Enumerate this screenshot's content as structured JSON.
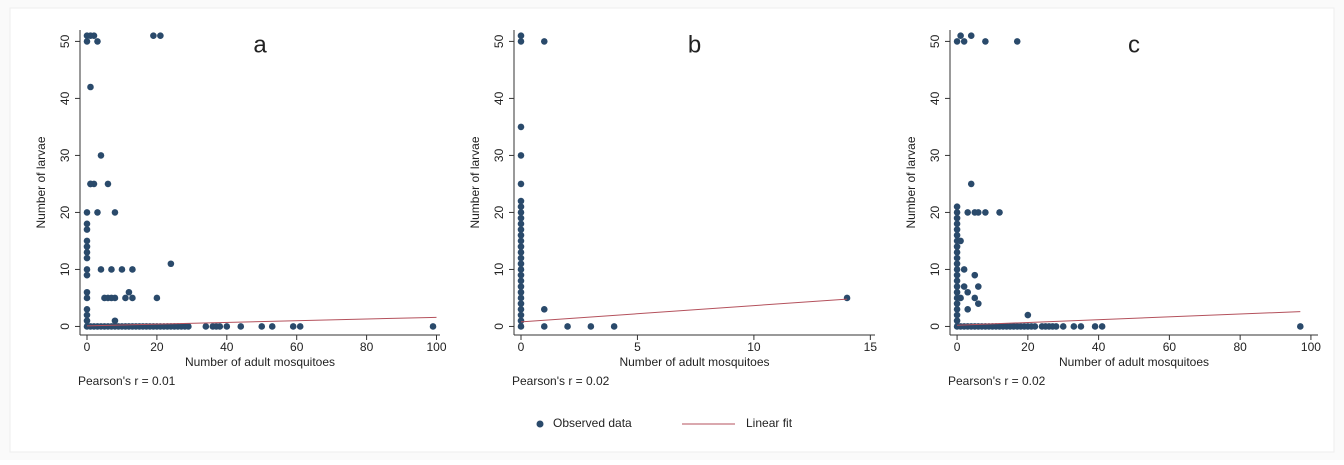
{
  "chart_data": [
    {
      "type": "scatter",
      "panel_label": "a",
      "x_label": "Number of adult mosquitoes",
      "y_label": "Number of larvae",
      "annotation": "Pearson's r =  0.01",
      "xlim": [
        -2,
        101
      ],
      "ylim": [
        -1.5,
        52
      ],
      "xticks": [
        0,
        20,
        40,
        60,
        80,
        100
      ],
      "yticks": [
        0,
        10,
        20,
        30,
        40,
        50
      ],
      "series": [
        {
          "name": "Observed data",
          "color": "#2a4a6b",
          "x": [
            0,
            0,
            0,
            0,
            0,
            0,
            0,
            0,
            0,
            0,
            0,
            0,
            0,
            0,
            0,
            0,
            1,
            0,
            1,
            4,
            6,
            8,
            2,
            1,
            3,
            4,
            7,
            10,
            13,
            8,
            11,
            13,
            12,
            20,
            24,
            19,
            21,
            2,
            1,
            3,
            8,
            5,
            6,
            7,
            1,
            2,
            3,
            4,
            5,
            6,
            7,
            8,
            9,
            10,
            11,
            12,
            13,
            14,
            15,
            16,
            17,
            18,
            19,
            20,
            21,
            22,
            23,
            24,
            25,
            26,
            27,
            28,
            29,
            34,
            36,
            37,
            38,
            40,
            44,
            50,
            53,
            59,
            61,
            99
          ],
          "y": [
            0,
            1,
            2,
            3,
            5,
            6,
            9,
            10,
            12,
            13,
            14,
            15,
            17,
            18,
            20,
            50,
            51,
            51,
            25,
            30,
            25,
            20,
            25,
            25,
            20,
            10,
            10,
            10,
            10,
            5,
            5,
            5,
            6,
            5,
            11,
            51,
            51,
            51,
            42,
            50,
            1,
            5,
            5,
            5,
            0,
            0,
            0,
            0,
            0,
            0,
            0,
            0,
            0,
            0,
            0,
            0,
            0,
            0,
            0,
            0,
            0,
            0,
            0,
            0,
            0,
            0,
            0,
            0,
            0,
            0,
            0,
            0,
            0,
            0,
            0,
            0,
            0,
            0,
            0,
            0,
            0,
            0,
            0,
            0
          ]
        },
        {
          "name": "Linear fit",
          "color": "#b4515c",
          "type": "line",
          "x": [
            0,
            100
          ],
          "y": [
            0.1,
            1.6
          ]
        }
      ]
    },
    {
      "type": "scatter",
      "panel_label": "b",
      "x_label": "Number of adult mosquitoes",
      "y_label": "Number of larvae",
      "annotation": "Pearson's r = 0.02",
      "xlim": [
        -0.3,
        15.2
      ],
      "ylim": [
        -1.5,
        52
      ],
      "xticks": [
        0,
        5,
        10,
        15
      ],
      "yticks": [
        0,
        10,
        20,
        30,
        40,
        50
      ],
      "series": [
        {
          "name": "Observed data",
          "color": "#2a4a6b",
          "x": [
            0,
            0,
            0,
            0,
            0,
            0,
            0,
            0,
            0,
            0,
            0,
            0,
            0,
            0,
            0,
            0,
            0,
            0,
            0,
            0,
            0,
            0,
            0,
            0,
            0,
            0,
            0,
            0,
            1,
            1,
            1,
            2,
            3,
            4,
            14
          ],
          "y": [
            0,
            1,
            2,
            3,
            4,
            5,
            6,
            7,
            8,
            9,
            10,
            11,
            12,
            13,
            14,
            15,
            16,
            17,
            18,
            19,
            20,
            21,
            22,
            25,
            30,
            35,
            50,
            51,
            50,
            3,
            0,
            0,
            0,
            0,
            5
          ]
        },
        {
          "name": "Linear fit",
          "color": "#b4515c",
          "type": "line",
          "x": [
            0,
            14
          ],
          "y": [
            0.8,
            4.8
          ]
        }
      ]
    },
    {
      "type": "scatter",
      "panel_label": "c",
      "x_label": "Number of adult mosquitoes",
      "y_label": "Number of larvae",
      "annotation": "Pearson's r = 0.02",
      "xlim": [
        -2,
        102
      ],
      "ylim": [
        -1.5,
        52
      ],
      "xticks": [
        0,
        20,
        40,
        60,
        80,
        100
      ],
      "yticks": [
        0,
        10,
        20,
        30,
        40,
        50
      ],
      "series": [
        {
          "name": "Observed data",
          "color": "#2a4a6b",
          "x": [
            0,
            0,
            0,
            0,
            0,
            0,
            0,
            0,
            0,
            0,
            0,
            0,
            0,
            0,
            0,
            0,
            0,
            0,
            0,
            0,
            0,
            0,
            0,
            2,
            4,
            8,
            17,
            1,
            4,
            5,
            3,
            6,
            8,
            12,
            1,
            2,
            2,
            3,
            5,
            6,
            5,
            6,
            1,
            20,
            3,
            1,
            2,
            3,
            4,
            5,
            6,
            7,
            8,
            9,
            10,
            11,
            12,
            13,
            14,
            15,
            16,
            17,
            18,
            19,
            20,
            21,
            22,
            24,
            25,
            26,
            27,
            28,
            30,
            33,
            35,
            39,
            41,
            97
          ],
          "y": [
            0,
            1,
            2,
            3,
            4,
            5,
            6,
            7,
            8,
            9,
            10,
            11,
            12,
            13,
            14,
            15,
            16,
            17,
            18,
            19,
            20,
            21,
            50,
            50,
            51,
            50,
            50,
            51,
            25,
            20,
            20,
            20,
            20,
            20,
            15,
            10,
            7,
            6,
            9,
            7,
            5,
            4,
            5,
            2,
            3,
            0,
            0,
            0,
            0,
            0,
            0,
            0,
            0,
            0,
            0,
            0,
            0,
            0,
            0,
            0,
            0,
            0,
            0,
            0,
            0,
            0,
            0,
            0,
            0,
            0,
            0,
            0,
            0,
            0,
            0,
            0,
            0,
            0
          ]
        },
        {
          "name": "Linear fit",
          "color": "#b4515c",
          "type": "line",
          "x": [
            0,
            97
          ],
          "y": [
            0.2,
            2.6
          ]
        }
      ]
    }
  ]
}
